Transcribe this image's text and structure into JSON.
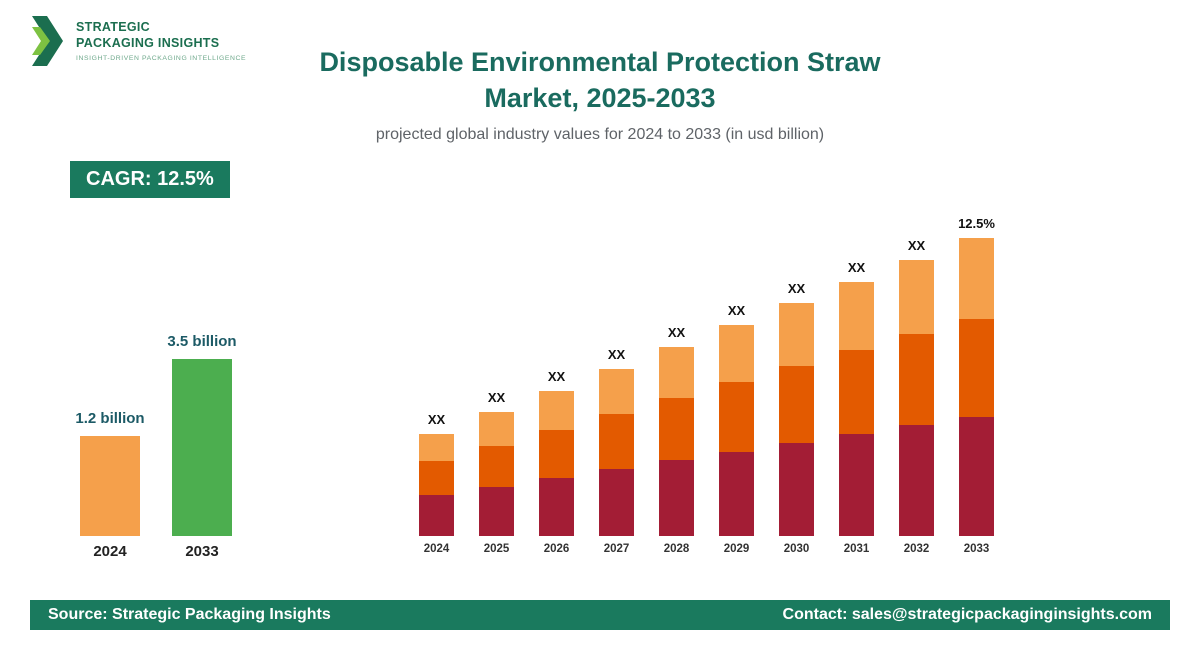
{
  "logo": {
    "line1": "STRATEGIC",
    "line2": "PACKAGING INSIGHTS",
    "tagline": "INSIGHT-DRIVEN PACKAGING INTELLIGENCE"
  },
  "header": {
    "title_line1": "Disposable Environmental Protection Straw",
    "title_line2": "Market, 2025-2033",
    "subtitle": "projected global industry values for 2024 to 2033 (in usd billion)"
  },
  "cagr_badge": "CAGR: 12.5%",
  "colors": {
    "title": "#1a6b5f",
    "badge_bg": "#1a7a5e",
    "footer_bg": "#1a7a5e",
    "summary_orange": "#f5a04b",
    "summary_green": "#4cae4f",
    "stack_bottom": "#a31d35",
    "stack_middle": "#e35a00",
    "stack_top": "#f5a04b"
  },
  "chart_data": [
    {
      "type": "bar",
      "name": "growth-summary",
      "title": "",
      "categories": [
        "2024",
        "2033"
      ],
      "values": [
        1.2,
        3.5
      ],
      "value_labels": [
        "1.2 billion",
        "3.5 billion"
      ],
      "colors": [
        "#f5a04b",
        "#4cae4f"
      ],
      "ylim": [
        0,
        3.5
      ],
      "grid": false,
      "legend": "none"
    },
    {
      "type": "bar",
      "name": "stacked-projection",
      "stacked": true,
      "title": "",
      "categories": [
        "2024",
        "2025",
        "2026",
        "2027",
        "2028",
        "2029",
        "2030",
        "2031",
        "2032",
        "2033"
      ],
      "totals": [
        1.2,
        1.46,
        1.71,
        1.97,
        2.22,
        2.48,
        2.73,
        2.99,
        3.24,
        3.5
      ],
      "series": [
        {
          "name": "bottom",
          "color": "#a31d35",
          "values": [
            0.48,
            0.58,
            0.68,
            0.79,
            0.89,
            0.99,
            1.09,
            1.2,
            1.3,
            1.4
          ]
        },
        {
          "name": "middle",
          "color": "#e35a00",
          "values": [
            0.4,
            0.48,
            0.57,
            0.65,
            0.73,
            0.82,
            0.9,
            0.99,
            1.07,
            1.15
          ]
        },
        {
          "name": "top",
          "color": "#f5a04b",
          "values": [
            0.32,
            0.4,
            0.46,
            0.53,
            0.6,
            0.67,
            0.74,
            0.8,
            0.87,
            0.95
          ]
        }
      ],
      "bar_labels": [
        "XX",
        "XX",
        "XX",
        "XX",
        "XX",
        "XX",
        "XX",
        "XX",
        "XX",
        "12.5%"
      ],
      "ylim": [
        0,
        3.5
      ],
      "grid": false,
      "legend": "none"
    }
  ],
  "footer": {
    "source": "Source: Strategic Packaging Insights",
    "contact": "Contact: sales@strategicpackaginginsights.com"
  }
}
